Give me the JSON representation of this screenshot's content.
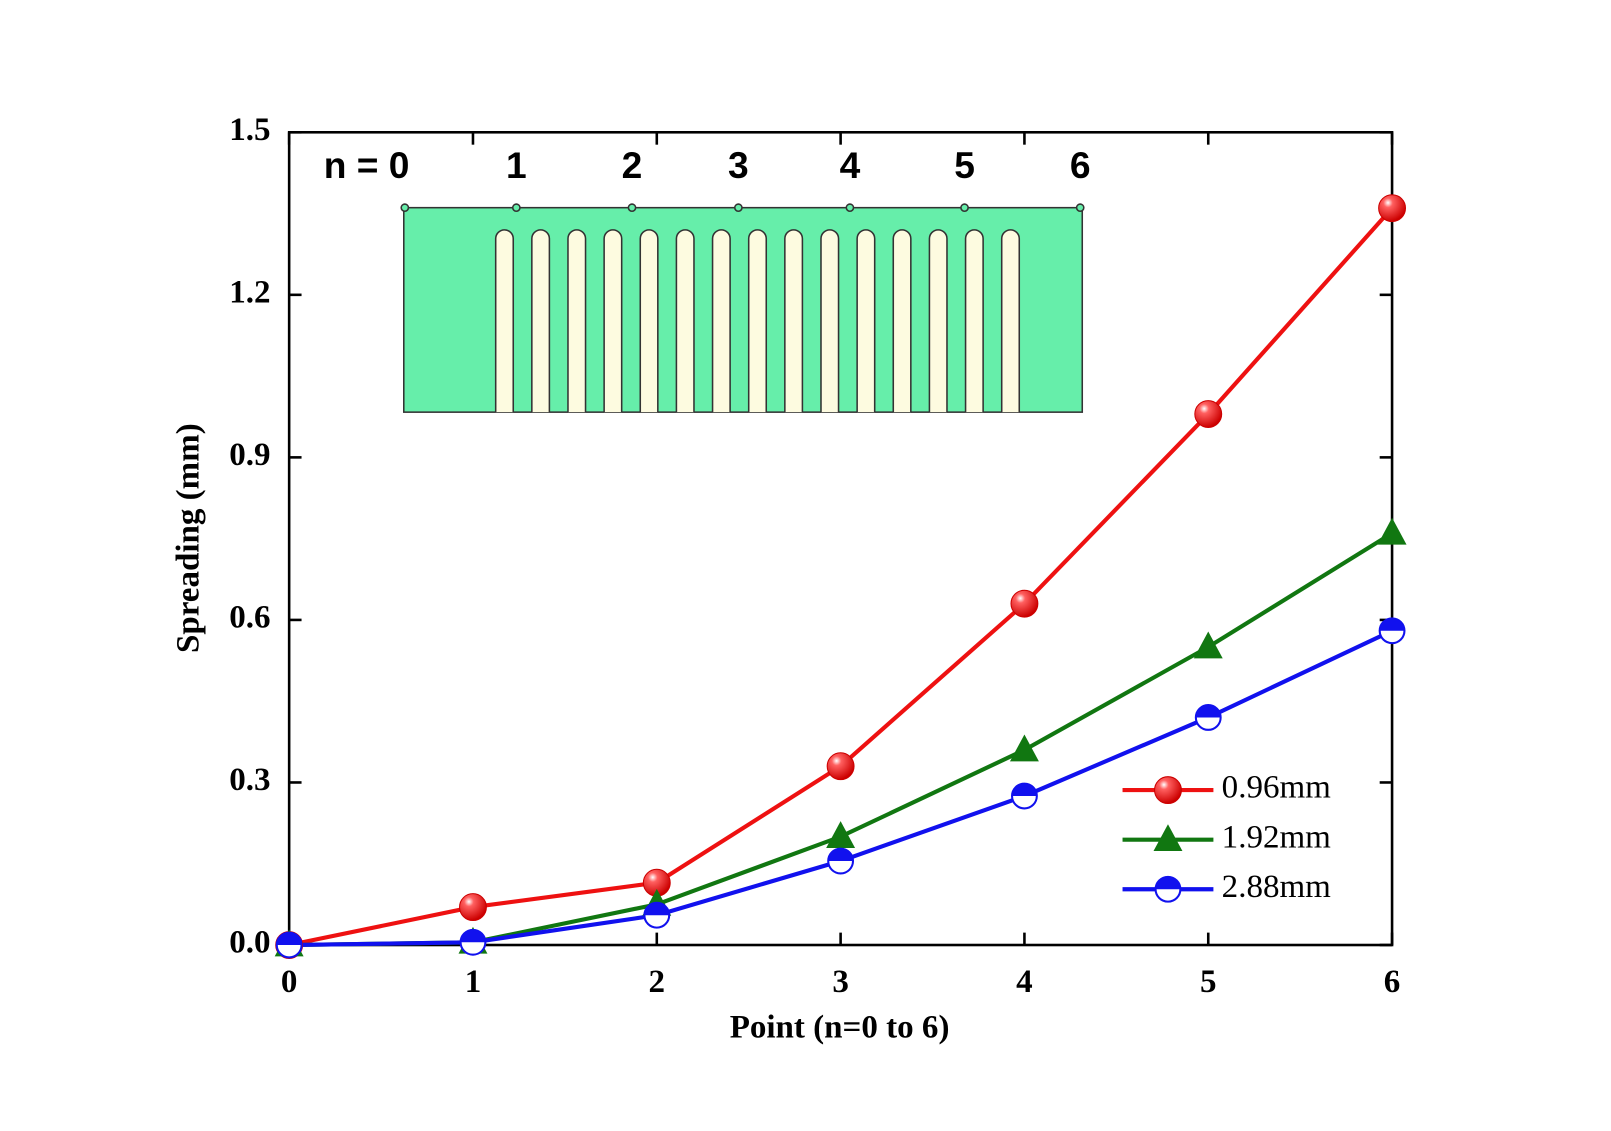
{
  "chart_data": {
    "type": "line",
    "x_label": "Point (n=0 to 6)",
    "y_label": "Spreading (mm)",
    "x": [
      0,
      1,
      2,
      3,
      4,
      5,
      6
    ],
    "xlim": [
      0,
      6
    ],
    "xticks": [
      0,
      1,
      2,
      3,
      4,
      5,
      6
    ],
    "ylim": [
      0,
      1.5
    ],
    "yticks": [
      {
        "value": 0,
        "label": "0.0"
      },
      0.3,
      0.6,
      0.9,
      1.2,
      1.5
    ],
    "series": [
      {
        "name": "0.96mm",
        "color": "#ee1111",
        "marker": "sphere",
        "values": [
          0,
          0.07,
          0.115,
          0.33,
          0.63,
          0.98,
          1.36
        ]
      },
      {
        "name": "1.92mm",
        "color": "#117711",
        "marker": "triangle",
        "values": [
          0,
          0.005,
          0.075,
          0.2,
          0.36,
          0.55,
          0.76
        ]
      },
      {
        "name": "2.88mm",
        "color": "#1111ee",
        "marker": "half-circle",
        "values": [
          0,
          0.005,
          0.055,
          0.155,
          0.275,
          0.42,
          0.58
        ]
      }
    ],
    "legend": "lower right",
    "annotations": [
      "n = 0",
      "1",
      "2",
      "3",
      "4",
      "5",
      "6"
    ]
  }
}
